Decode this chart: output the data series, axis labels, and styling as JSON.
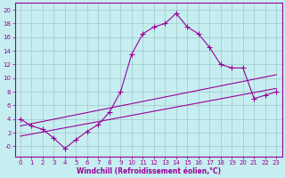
{
  "xlabel": "Windchill (Refroidissement éolien,°C)",
  "xlim": [
    -0.5,
    23.5
  ],
  "ylim": [
    -1.5,
    21
  ],
  "xticks": [
    0,
    1,
    2,
    3,
    4,
    5,
    6,
    7,
    8,
    9,
    10,
    11,
    12,
    13,
    14,
    15,
    16,
    17,
    18,
    19,
    20,
    21,
    22,
    23
  ],
  "yticks": [
    0,
    2,
    4,
    6,
    8,
    10,
    12,
    14,
    16,
    18,
    20
  ],
  "ytick_labels": [
    "-0",
    "2",
    "4",
    "6",
    "8",
    "10",
    "12",
    "14",
    "16",
    "18",
    "20"
  ],
  "bg_color": "#c6eef0",
  "line_color": "#990099",
  "grid_color": "#a0c8cc",
  "line1_x": [
    0,
    1,
    2,
    3,
    4,
    5,
    6,
    7,
    8,
    9,
    10,
    11,
    12,
    13,
    14,
    15,
    16,
    17,
    18,
    19,
    20,
    21,
    22,
    23
  ],
  "line1_y": [
    4.0,
    3.0,
    2.5,
    1.2,
    -0.3,
    1.0,
    2.2,
    3.2,
    5.0,
    8.0,
    13.5,
    16.5,
    17.5,
    18.0,
    19.5,
    17.5,
    16.5,
    14.5,
    12.0,
    11.5,
    11.5,
    7.0,
    7.5,
    8.0
  ],
  "line2_x": [
    0,
    23
  ],
  "line2_y": [
    3.0,
    10.5
  ],
  "line3_x": [
    0,
    23
  ],
  "line3_y": [
    1.5,
    8.5
  ]
}
